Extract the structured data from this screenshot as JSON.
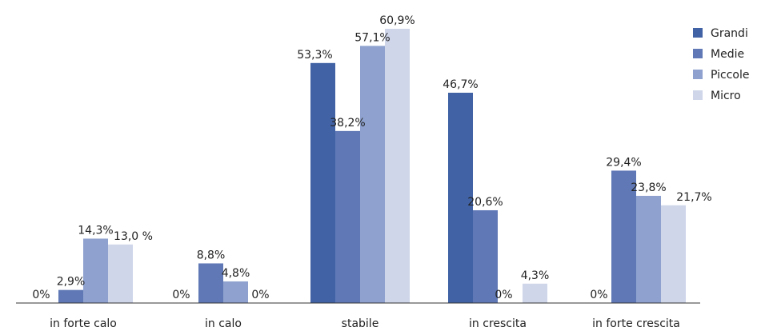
{
  "chart_data": {
    "type": "bar",
    "categories": [
      "in forte calo",
      "in calo",
      "stabile",
      "in  crescita",
      "in forte crescita"
    ],
    "series": [
      {
        "name": "Grandi",
        "color": "#4163a5",
        "values": [
          0,
          0,
          53.3,
          46.7,
          0
        ],
        "labels": [
          "0%",
          "0%",
          "53,3%",
          "46,7%",
          "0%"
        ]
      },
      {
        "name": "Medie",
        "color": "#6079b6",
        "values": [
          2.9,
          8.8,
          38.2,
          20.6,
          29.4
        ],
        "labels": [
          "2,9%",
          "8,8%",
          "38,2%",
          "20,6%",
          "29,4%"
        ]
      },
      {
        "name": "Piccole",
        "color": "#8fa2cf",
        "values": [
          14.3,
          4.8,
          57.1,
          0,
          23.8
        ],
        "labels": [
          "14,3%",
          "4,8%",
          "57,1%",
          "0%",
          "23,8%"
        ]
      },
      {
        "name": "Micro",
        "color": "#cfd6ea",
        "values": [
          13.0,
          0,
          60.9,
          4.3,
          21.7
        ],
        "labels": [
          "13,0 %",
          "0%",
          "60,9%",
          "4,3%",
          "21,7%"
        ]
      }
    ],
    "ylim": [
      0,
      70
    ],
    "grid": false,
    "legend": "top-right",
    "title": "",
    "xlabel": "",
    "ylabel": ""
  }
}
